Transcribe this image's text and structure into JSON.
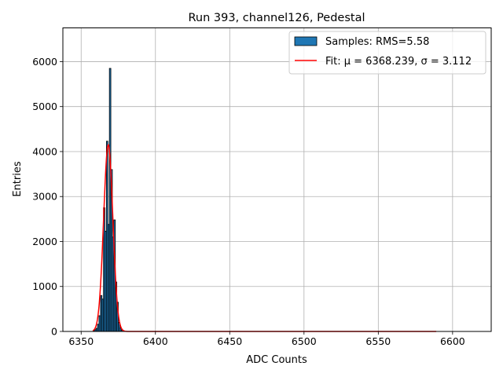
{
  "chart_data": {
    "type": "bar",
    "title": "Run 393, channel126, Pedestal",
    "xlabel": "ADC Counts",
    "ylabel": "Entries",
    "xlim": [
      6337.7,
      6626.0
    ],
    "ylim": [
      0,
      6750
    ],
    "xticks": [
      "6350",
      "6400",
      "6450",
      "6500",
      "6550",
      "6600"
    ],
    "yticks": [
      "0",
      "1000",
      "2000",
      "3000",
      "4000",
      "5000",
      "6000"
    ],
    "grid": true,
    "legend_position": "top-right",
    "histogram": {
      "name": "Samples: RMS=5.58",
      "color": "#1f77b4",
      "bin_width": 1,
      "bins": [
        {
          "x": 6358,
          "count": 20
        },
        {
          "x": 6359,
          "count": 40
        },
        {
          "x": 6360,
          "count": 70
        },
        {
          "x": 6361,
          "count": 160
        },
        {
          "x": 6362,
          "count": 350
        },
        {
          "x": 6363,
          "count": 800
        },
        {
          "x": 6364,
          "count": 720
        },
        {
          "x": 6365,
          "count": 2750
        },
        {
          "x": 6366,
          "count": 2230
        },
        {
          "x": 6367,
          "count": 4230
        },
        {
          "x": 6368,
          "count": 2380
        },
        {
          "x": 6369,
          "count": 5850
        },
        {
          "x": 6370,
          "count": 3600
        },
        {
          "x": 6371,
          "count": 2100
        },
        {
          "x": 6372,
          "count": 2480
        },
        {
          "x": 6373,
          "count": 1100
        },
        {
          "x": 6374,
          "count": 650
        },
        {
          "x": 6375,
          "count": 200
        },
        {
          "x": 6376,
          "count": 80
        },
        {
          "x": 6377,
          "count": 25
        }
      ]
    },
    "fit": {
      "name": "Fit: μ = 6368.239, σ = 3.112",
      "color": "#ff0000",
      "mu": 6368.239,
      "sigma": 3.112,
      "amplitude": 4150,
      "x_range": [
        6358,
        6589
      ]
    }
  }
}
